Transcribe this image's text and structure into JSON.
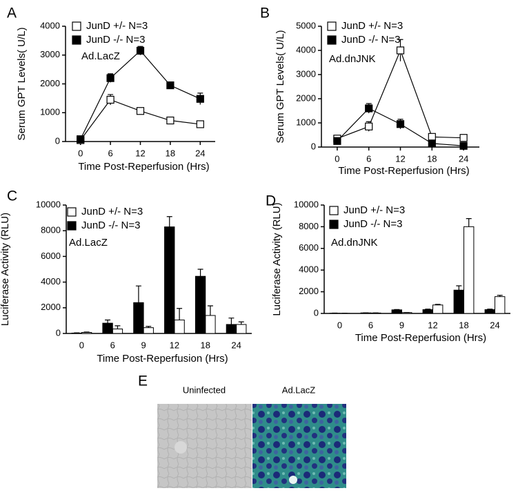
{
  "chart_data": [
    {
      "type": "line",
      "panel": "A",
      "annotation": "Ad.LacZ",
      "xlabel": "Time Post-Reperfusion (Hrs)",
      "ylabel": "Serum GPT Levels( U/L)",
      "x": [
        0,
        6,
        12,
        18,
        24
      ],
      "xlim": [
        -3,
        27
      ],
      "xticks": [
        0,
        6,
        12,
        18,
        24
      ],
      "ylim": [
        0,
        4000
      ],
      "yticks": [
        0,
        1000,
        2000,
        3000,
        4000
      ],
      "series": [
        {
          "name": "JunD +/-  N=3",
          "color": "#ffffff",
          "values": [
            50,
            1450,
            1060,
            730,
            600
          ],
          "errors": [
            30,
            180,
            80,
            60,
            50
          ]
        },
        {
          "name": "JunD -/-  N=3",
          "color": "#000000",
          "values": [
            80,
            2200,
            3150,
            1950,
            1480
          ],
          "errors": [
            30,
            150,
            150,
            80,
            200
          ]
        }
      ]
    },
    {
      "type": "line",
      "panel": "B",
      "annotation": "Ad.dnJNK",
      "xlabel": "Time Post-Reperfusion (Hrs)",
      "ylabel": "Serum GPT Levels( U/L)",
      "x": [
        0,
        6,
        12,
        18,
        24
      ],
      "xlim": [
        -3,
        27
      ],
      "xticks": [
        0,
        6,
        12,
        18,
        24
      ],
      "ylim": [
        0,
        5000
      ],
      "yticks": [
        0,
        1000,
        2000,
        3000,
        4000,
        5000
      ],
      "series": [
        {
          "name": "JunD +/-  N=3",
          "color": "#ffffff",
          "values": [
            350,
            850,
            4000,
            420,
            380
          ],
          "errors": [
            50,
            200,
            450,
            60,
            50
          ]
        },
        {
          "name": "JunD -/-  N=3",
          "color": "#000000",
          "values": [
            250,
            1600,
            950,
            150,
            50
          ],
          "errors": [
            50,
            200,
            200,
            40,
            20
          ]
        }
      ]
    },
    {
      "type": "bar",
      "panel": "C",
      "annotation": "Ad.LacZ",
      "xlabel": "Time Post-Reperfusion (Hrs)",
      "ylabel": "Luciferase Activity (RLU)",
      "categories": [
        "0",
        "6",
        "9",
        "12",
        "18",
        "24"
      ],
      "ylim": [
        0,
        10000
      ],
      "yticks": [
        0,
        2000,
        4000,
        6000,
        8000,
        10000
      ],
      "series": [
        {
          "name": "JunD +/-  N=3",
          "color": "#ffffff",
          "values": [
            80,
            350,
            450,
            1050,
            1400,
            700
          ],
          "errors": [
            30,
            250,
            100,
            900,
            750,
            200
          ]
        },
        {
          "name": "JunD -/-  N=3",
          "color": "#000000",
          "values": [
            30,
            800,
            2400,
            8300,
            4450,
            700
          ],
          "errors": [
            20,
            250,
            1300,
            800,
            550,
            500
          ]
        }
      ]
    },
    {
      "type": "bar",
      "panel": "D",
      "annotation": "Ad.dnJNK",
      "xlabel": "Time Post-Reperfusion (Hrs)",
      "ylabel": "Luciferase Activity (RLU)",
      "categories": [
        "0",
        "6",
        "9",
        "12",
        "18",
        "24"
      ],
      "ylim": [
        0,
        10000
      ],
      "yticks": [
        0,
        2000,
        4000,
        6000,
        8000,
        10000
      ],
      "series": [
        {
          "name": "JunD +/-  N=3",
          "color": "#ffffff",
          "values": [
            10,
            40,
            80,
            780,
            8000,
            1550
          ],
          "errors": [
            5,
            10,
            10,
            60,
            750,
            120
          ]
        },
        {
          "name": "JunD -/-  N=3",
          "color": "#000000",
          "values": [
            20,
            50,
            330,
            350,
            2150,
            350
          ],
          "errors": [
            10,
            10,
            30,
            50,
            400,
            50
          ]
        }
      ]
    }
  ],
  "panel_e": {
    "label": "E",
    "images": [
      {
        "caption": "Uninfected"
      },
      {
        "caption": "Ad.LacZ"
      }
    ]
  }
}
